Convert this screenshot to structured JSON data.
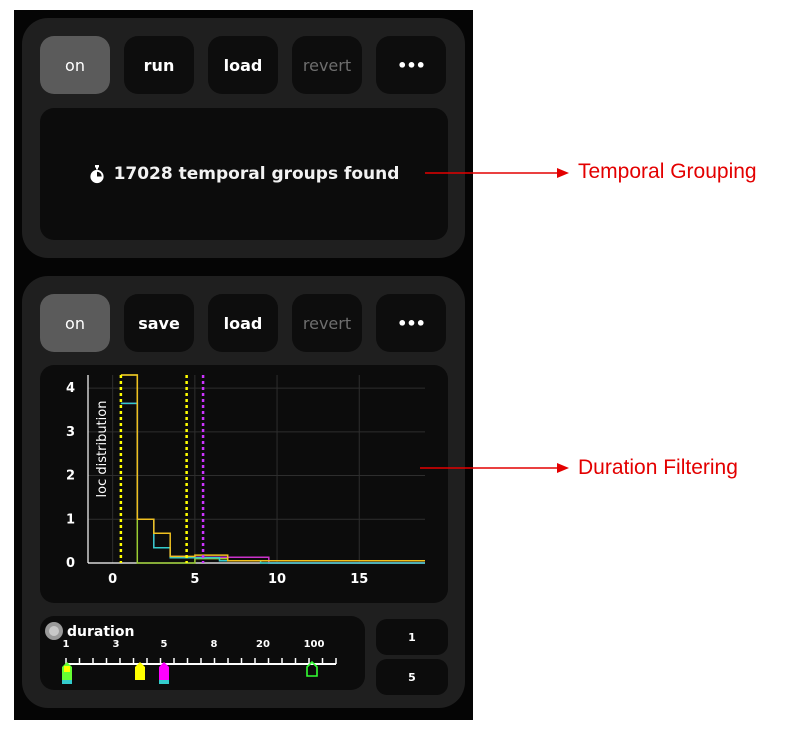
{
  "temporal_grouping": {
    "buttons": {
      "on": "on",
      "run": "run",
      "load": "load",
      "revert": "revert",
      "more": "•••"
    },
    "status": "17028 temporal groups found",
    "status_icon": "stopwatch-icon"
  },
  "duration_filtering": {
    "buttons": {
      "on": "on",
      "save": "save",
      "load": "load",
      "revert": "revert",
      "more": "•••"
    },
    "slider": {
      "toggle_icon": "radio-toggle-icon",
      "label": "duration",
      "tick_labels": [
        "1",
        "3",
        "5",
        "8",
        "20",
        "100"
      ],
      "min_value": "1",
      "max_value": "5"
    }
  },
  "annotations": {
    "temporal_grouping": "Temporal Grouping",
    "duration_filtering": "Duration Filtering"
  },
  "colors": {
    "app_background": "#050505",
    "panel": "#1f1f1f",
    "button": "#0d0d0d",
    "button_active": "#5b5b5b",
    "annotation": "#e30000",
    "series_green": "#9acd32",
    "series_magenta": "#cc33cc",
    "series_cyan": "#33cccc",
    "series_yellow": "#f0c020",
    "marker_yellow": "#ffff00",
    "marker_magenta": "#ff00ff"
  },
  "chart_data": {
    "type": "line",
    "ylabel": "loc distribution",
    "xlabel": "",
    "xlim": [
      -1.5,
      19
    ],
    "ylim": [
      0,
      4.3
    ],
    "x_ticks": [
      0,
      5,
      10,
      15
    ],
    "y_ticks": [
      0,
      1,
      2,
      3,
      4
    ],
    "grid": true,
    "step_series": [
      {
        "color": "#9acd32",
        "points": [
          [
            0.5,
            4.3
          ],
          [
            1.5,
            4.3
          ],
          [
            1.5,
            0
          ],
          [
            5,
            0
          ],
          [
            5,
            0.1
          ],
          [
            7,
            0.1
          ],
          [
            7,
            0.05
          ],
          [
            9.5,
            0.05
          ],
          [
            9.5,
            0
          ],
          [
            19,
            0
          ]
        ]
      },
      {
        "color": "#cc33cc",
        "points": [
          [
            0.5,
            3.65
          ],
          [
            1.5,
            3.65
          ],
          [
            1.5,
            1.0
          ],
          [
            2.5,
            1.0
          ],
          [
            2.5,
            0.35
          ],
          [
            3.5,
            0.35
          ],
          [
            3.5,
            0.15
          ],
          [
            4.5,
            0.15
          ],
          [
            4.5,
            0.13
          ],
          [
            9.5,
            0.13
          ],
          [
            9.5,
            0
          ],
          [
            19,
            0
          ]
        ]
      },
      {
        "color": "#33cccc",
        "points": [
          [
            0.5,
            3.65
          ],
          [
            1.5,
            3.65
          ],
          [
            1.5,
            1.0
          ],
          [
            2.5,
            1.0
          ],
          [
            2.5,
            0.35
          ],
          [
            3.5,
            0.35
          ],
          [
            3.5,
            0.12
          ],
          [
            6.5,
            0.12
          ],
          [
            6.5,
            0.05
          ],
          [
            9,
            0.05
          ],
          [
            9,
            0
          ],
          [
            19,
            0
          ]
        ]
      },
      {
        "color": "#f0c020",
        "points": [
          [
            0.5,
            4.3
          ],
          [
            1.5,
            4.3
          ],
          [
            1.5,
            1.0
          ],
          [
            2.5,
            1.0
          ],
          [
            2.5,
            0.68
          ],
          [
            3.5,
            0.68
          ],
          [
            3.5,
            0.15
          ],
          [
            5,
            0.15
          ],
          [
            5,
            0.18
          ],
          [
            7,
            0.18
          ],
          [
            7,
            0.05
          ],
          [
            19,
            0.05
          ]
        ]
      }
    ],
    "threshold_lines": [
      {
        "x": 0.5,
        "color": "#ffff00"
      },
      {
        "x": 4.5,
        "color": "#ffff00"
      },
      {
        "x": 5.5,
        "color": "#cc33ff"
      }
    ]
  }
}
